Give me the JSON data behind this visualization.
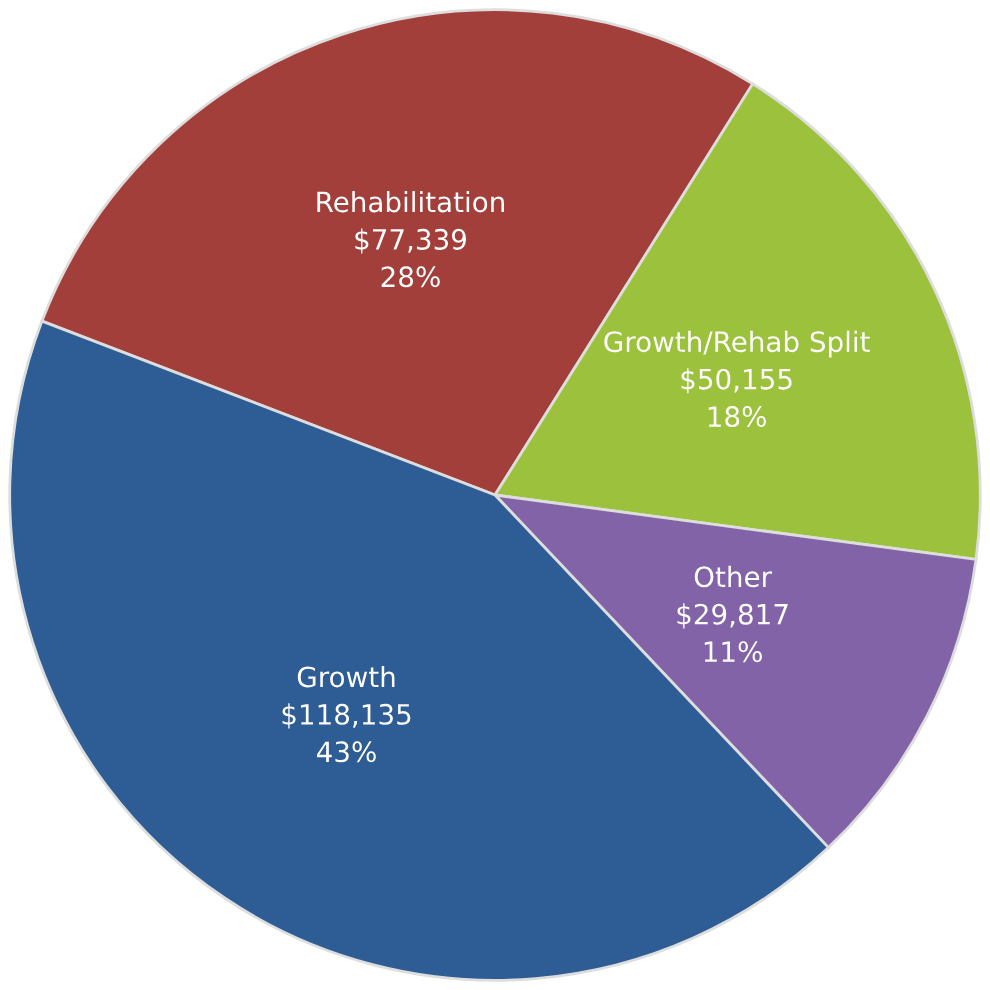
{
  "chart_data": {
    "type": "pie",
    "categories": [
      "Rehabilitation",
      "Growth/Rehab Split",
      "Other",
      "Growth"
    ],
    "values": [
      77339,
      50155,
      29817,
      118135
    ],
    "value_labels": [
      "$77,339\n28%",
      "$50,155\n18%",
      "$29,817\n11%",
      "$118,135\n43%"
    ],
    "colors": [
      "#a23f3b",
      "#9cc13d",
      "#8363a8",
      "#2e5c95"
    ]
  }
}
